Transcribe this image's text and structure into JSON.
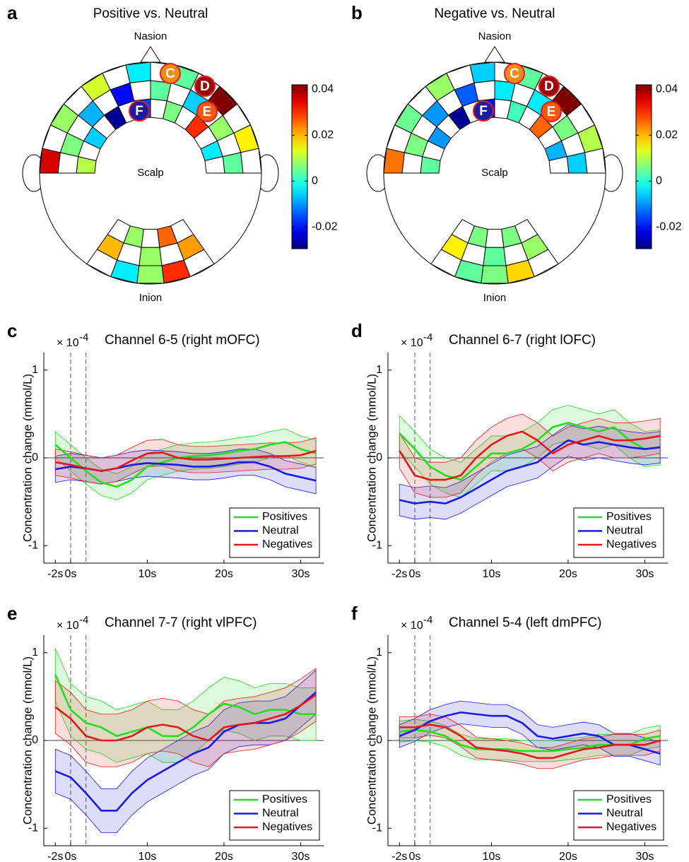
{
  "chart_data": [
    {
      "type": "heatmap",
      "panel_label": "a",
      "title": "Positive vs. Neutral",
      "top_label": "Nasion",
      "center_label": "Scalp",
      "bottom_label": "Inion",
      "markers": [
        "C",
        "D",
        "E",
        "F"
      ],
      "colormap": "jet",
      "front_values": [
        [
          0.01,
          null,
          -0.006,
          null,
          -0.028,
          null,
          -0.016,
          null,
          0.006,
          null,
          0.03,
          null,
          -0.004,
          null
        ],
        [
          null,
          0.006,
          null,
          -0.008,
          null,
          -0.02,
          null,
          0.004,
          null,
          -0.006,
          null,
          0.008,
          null,
          0.004
        ],
        [
          0.036,
          null,
          0.008,
          null,
          0.012,
          null,
          -0.004,
          null,
          0.004,
          null,
          0.042,
          null,
          0.016,
          null
        ]
      ],
      "back_values": [
        [
          null,
          0.008,
          null,
          0.026,
          null
        ],
        [
          0.02,
          null,
          0.008,
          null,
          0.022
        ],
        [
          null,
          -0.004,
          0.008,
          0.03,
          null
        ]
      ],
      "clim": [
        -0.0295,
        0.042
      ],
      "cticks": [
        -0.02,
        0,
        0.02,
        0.04
      ]
    },
    {
      "type": "heatmap",
      "panel_label": "b",
      "title": "Negative vs. Neutral",
      "top_label": "Nasion",
      "center_label": "Scalp",
      "bottom_label": "Inion",
      "markers": [
        "C",
        "D",
        "E",
        "F"
      ],
      "colormap": "jet",
      "front_values": [
        [
          0.004,
          null,
          -0.01,
          null,
          -0.028,
          null,
          -0.02,
          null,
          0.002,
          null,
          0.026,
          null,
          -0.008,
          null
        ],
        [
          null,
          0.006,
          null,
          -0.01,
          null,
          -0.014,
          null,
          -0.004,
          null,
          -0.004,
          null,
          0.006,
          null,
          -0.006
        ],
        [
          0.025,
          null,
          0.005,
          null,
          0.008,
          null,
          -0.006,
          null,
          0.004,
          null,
          0.042,
          null,
          0.01,
          null
        ]
      ],
      "back_values": [
        [
          null,
          0.006,
          null,
          0.006,
          null
        ],
        [
          0.016,
          null,
          0.004,
          null,
          0.008
        ],
        [
          null,
          0.004,
          0.006,
          0.018,
          null
        ]
      ],
      "clim": [
        -0.0295,
        0.042
      ],
      "cticks": [
        -0.02,
        0,
        0.02,
        0.04
      ]
    },
    {
      "type": "line",
      "panel_label": "c",
      "title": "Channel 6-5 (right mOFC)",
      "ylabel": "Concentration change (mmol/L)",
      "y_scale": {
        "base": "× 10",
        "exponent": "-4"
      },
      "x": [
        -2,
        0,
        2,
        4,
        6,
        8,
        10,
        12,
        14,
        16,
        18,
        20,
        22,
        24,
        26,
        28,
        30,
        32
      ],
      "xlim": [
        -3.5,
        33
      ],
      "xticks": [
        {
          "value": -2,
          "label": "-2s"
        },
        {
          "value": 0,
          "label": "0s"
        },
        {
          "value": 10,
          "label": "10s"
        },
        {
          "value": 20,
          "label": "20s"
        },
        {
          "value": 30,
          "label": "30s"
        }
      ],
      "ylim": [
        -1.2,
        1.2
      ],
      "yticks": [
        -1,
        0,
        1
      ],
      "vlines": [
        0,
        2
      ],
      "hlines": [
        0
      ],
      "legend": "lower right",
      "series": [
        {
          "name": "Positives",
          "color": "#22dd22",
          "error": 0.15,
          "values": [
            0.15,
            0.0,
            -0.15,
            -0.28,
            -0.33,
            -0.25,
            -0.1,
            -0.05,
            0.0,
            0.02,
            0.03,
            0.05,
            0.08,
            0.1,
            0.15,
            0.18,
            0.1,
            0.05
          ]
        },
        {
          "name": "Neutral",
          "color": "#1a1ae0",
          "error": 0.15,
          "values": [
            -0.13,
            -0.1,
            -0.12,
            -0.15,
            -0.12,
            -0.08,
            -0.06,
            -0.07,
            -0.08,
            -0.1,
            -0.1,
            -0.08,
            -0.05,
            -0.05,
            -0.1,
            -0.18,
            -0.22,
            -0.26
          ]
        },
        {
          "name": "Negatives",
          "color": "#e01a1a",
          "error": 0.15,
          "values": [
            -0.05,
            -0.08,
            -0.12,
            -0.15,
            -0.12,
            -0.03,
            0.05,
            0.06,
            0.0,
            -0.02,
            -0.02,
            -0.01,
            0.0,
            0.01,
            0.02,
            0.02,
            0.03,
            0.08
          ]
        }
      ]
    },
    {
      "type": "line",
      "panel_label": "d",
      "title": "Channel 6-7 (right lOFC)",
      "ylabel": "Concentration change (mmol/L)",
      "y_scale": {
        "base": "× 10",
        "exponent": "-4"
      },
      "x": [
        -2,
        0,
        2,
        4,
        6,
        8,
        10,
        12,
        14,
        16,
        18,
        20,
        22,
        24,
        26,
        28,
        30,
        32
      ],
      "xlim": [
        -3.5,
        33
      ],
      "xticks": [
        {
          "value": -2,
          "label": "-2s"
        },
        {
          "value": 0,
          "label": "0s"
        },
        {
          "value": 10,
          "label": "10s"
        },
        {
          "value": 20,
          "label": "20s"
        },
        {
          "value": 30,
          "label": "30s"
        }
      ],
      "ylim": [
        -1.2,
        1.2
      ],
      "yticks": [
        -1,
        0,
        1
      ],
      "vlines": [
        0,
        2
      ],
      "hlines": [
        0
      ],
      "legend": "lower right",
      "series": [
        {
          "name": "Positives",
          "color": "#22dd22",
          "error": 0.2,
          "values": [
            0.28,
            0.1,
            -0.1,
            -0.2,
            -0.25,
            -0.1,
            0.05,
            0.05,
            0.1,
            0.2,
            0.35,
            0.4,
            0.35,
            0.3,
            0.35,
            0.2,
            0.1,
            0.12
          ]
        },
        {
          "name": "Neutral",
          "color": "#1a1ae0",
          "error": 0.18,
          "values": [
            -0.48,
            -0.52,
            -0.5,
            -0.52,
            -0.45,
            -0.35,
            -0.25,
            -0.15,
            -0.1,
            -0.05,
            0.08,
            0.2,
            0.15,
            0.18,
            0.15,
            0.12,
            0.1,
            0.12
          ]
        },
        {
          "name": "Negatives",
          "color": "#e01a1a",
          "error": 0.2,
          "values": [
            0.08,
            -0.2,
            -0.25,
            -0.25,
            -0.2,
            0.0,
            0.15,
            0.25,
            0.3,
            0.2,
            0.05,
            0.15,
            0.2,
            0.25,
            0.2,
            0.2,
            0.22,
            0.25
          ]
        }
      ]
    },
    {
      "type": "line",
      "panel_label": "e",
      "title": "Channel 7-7 (right vlPFC)",
      "ylabel": "Concentration change (mmol/L)",
      "y_scale": {
        "base": "× 10",
        "exponent": "-4"
      },
      "x": [
        -2,
        0,
        2,
        4,
        6,
        8,
        10,
        12,
        14,
        16,
        18,
        20,
        22,
        24,
        26,
        28,
        30,
        32
      ],
      "xlim": [
        -3.5,
        33
      ],
      "xticks": [
        {
          "value": -2,
          "label": "-2s"
        },
        {
          "value": 0,
          "label": "0s"
        },
        {
          "value": 10,
          "label": "10s"
        },
        {
          "value": 20,
          "label": "20s"
        },
        {
          "value": 30,
          "label": "30s"
        }
      ],
      "ylim": [
        -1.2,
        1.2
      ],
      "yticks": [
        -1,
        0,
        1
      ],
      "vlines": [
        0,
        2
      ],
      "hlines": [
        0
      ],
      "legend": "lower right",
      "series": [
        {
          "name": "Positives",
          "color": "#22dd22",
          "error": 0.3,
          "values": [
            0.75,
            0.35,
            0.2,
            0.15,
            0.05,
            0.1,
            0.15,
            0.05,
            0.05,
            0.15,
            0.3,
            0.42,
            0.38,
            0.3,
            0.35,
            0.35,
            0.3,
            0.3
          ]
        },
        {
          "name": "Neutral",
          "color": "#1a1ae0",
          "error": 0.25,
          "values": [
            -0.35,
            -0.42,
            -0.6,
            -0.8,
            -0.8,
            -0.6,
            -0.45,
            -0.35,
            -0.25,
            -0.15,
            -0.08,
            0.1,
            0.18,
            0.2,
            0.2,
            0.25,
            0.4,
            0.55
          ]
        },
        {
          "name": "Negatives",
          "color": "#e01a1a",
          "error": 0.3,
          "values": [
            0.38,
            0.25,
            0.05,
            0.0,
            0.0,
            0.05,
            0.15,
            0.18,
            0.15,
            0.05,
            0.0,
            0.15,
            0.18,
            0.2,
            0.25,
            0.3,
            0.4,
            0.52
          ]
        }
      ]
    },
    {
      "type": "line",
      "panel_label": "f",
      "title": "Channel 5-4 (left dmPFC)",
      "ylabel": "Concentration change (mmol/L)",
      "y_scale": {
        "base": "× 10",
        "exponent": "-4"
      },
      "x": [
        -2,
        0,
        2,
        4,
        6,
        8,
        10,
        12,
        14,
        16,
        18,
        20,
        22,
        24,
        26,
        28,
        30,
        32
      ],
      "xlim": [
        -3.5,
        33
      ],
      "xticks": [
        {
          "value": -2,
          "label": "-2s"
        },
        {
          "value": 0,
          "label": "0s"
        },
        {
          "value": 10,
          "label": "10s"
        },
        {
          "value": 20,
          "label": "20s"
        },
        {
          "value": 30,
          "label": "30s"
        }
      ],
      "ylim": [
        -1.2,
        1.2
      ],
      "yticks": [
        -1,
        0,
        1
      ],
      "vlines": [
        0,
        2
      ],
      "hlines": [
        0
      ],
      "legend": "lower right",
      "series": [
        {
          "name": "Positives",
          "color": "#22dd22",
          "error": 0.12,
          "values": [
            0.1,
            0.12,
            0.1,
            0.05,
            -0.05,
            -0.1,
            -0.1,
            -0.1,
            -0.12,
            -0.12,
            -0.12,
            -0.1,
            -0.08,
            -0.05,
            -0.05,
            -0.05,
            0.02,
            0.05
          ]
        },
        {
          "name": "Neutral",
          "color": "#1a1ae0",
          "error": 0.13,
          "values": [
            0.05,
            0.12,
            0.22,
            0.28,
            0.32,
            0.3,
            0.28,
            0.28,
            0.2,
            0.05,
            0.02,
            0.05,
            0.08,
            0.05,
            -0.05,
            -0.05,
            -0.1,
            -0.15
          ]
        },
        {
          "name": "Negatives",
          "color": "#e01a1a",
          "error": 0.12,
          "values": [
            0.15,
            0.15,
            0.18,
            0.15,
            0.05,
            -0.08,
            -0.1,
            -0.12,
            -0.15,
            -0.2,
            -0.2,
            -0.15,
            -0.1,
            -0.08,
            -0.05,
            -0.05,
            -0.05,
            0.0
          ]
        }
      ]
    }
  ]
}
